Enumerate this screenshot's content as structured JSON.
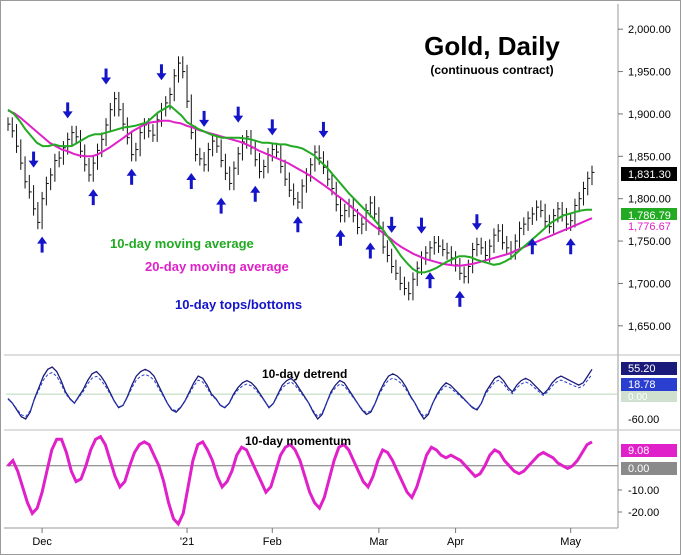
{
  "chart_data": {
    "type": "line",
    "title": "Gold, Daily",
    "subtitle": "(continuous contract)",
    "x_axis": {
      "tick_labels": [
        "Dec",
        "'21",
        "Feb",
        "Mar",
        "Apr",
        "May"
      ],
      "tick_index": [
        8,
        42,
        62,
        88,
        106,
        133
      ]
    },
    "price_panel": {
      "y_range": [
        1625,
        2025
      ],
      "y_ticks": [
        1650,
        1700,
        1750,
        1800,
        1850,
        1900,
        1950,
        2000
      ],
      "y_tick_labels": [
        "1,650.00",
        "1,700.00",
        "1,750.00",
        "1,800.00",
        "1,850.00",
        "1,900.00",
        "1,950.00",
        "2,000.00"
      ],
      "last_price_label": "1,831.30",
      "sma10_label": "1,786.79",
      "sma20_label": "1,776.67",
      "close": [
        1888,
        1880,
        1862,
        1842,
        1820,
        1808,
        1788,
        1772,
        1800,
        1818,
        1828,
        1845,
        1848,
        1860,
        1870,
        1878,
        1873,
        1856,
        1840,
        1828,
        1842,
        1857,
        1870,
        1887,
        1905,
        1918,
        1905,
        1888,
        1872,
        1852,
        1858,
        1878,
        1887,
        1880,
        1875,
        1893,
        1905,
        1913,
        1923,
        1945,
        1960,
        1950,
        1915,
        1878,
        1852,
        1847,
        1840,
        1858,
        1868,
        1862,
        1845,
        1830,
        1818,
        1836,
        1853,
        1867,
        1873,
        1860,
        1846,
        1832,
        1838,
        1852,
        1858,
        1855,
        1838,
        1823,
        1810,
        1800,
        1796,
        1815,
        1828,
        1840,
        1855,
        1848,
        1837,
        1823,
        1812,
        1793,
        1780,
        1786,
        1792,
        1780,
        1766,
        1770,
        1786,
        1795,
        1782,
        1765,
        1743,
        1733,
        1720,
        1712,
        1700,
        1694,
        1688,
        1705,
        1718,
        1730,
        1736,
        1742,
        1748,
        1744,
        1740,
        1736,
        1730,
        1722,
        1712,
        1708,
        1720,
        1740,
        1746,
        1742,
        1733,
        1744,
        1757,
        1762,
        1748,
        1742,
        1736,
        1750,
        1765,
        1770,
        1777,
        1782,
        1790,
        1786,
        1773,
        1767,
        1780,
        1788,
        1781,
        1770,
        1774,
        1792,
        1800,
        1812,
        1824,
        1831
      ],
      "sma10": [
        1905,
        1900,
        1892,
        1882,
        1874,
        1866,
        1862,
        1862,
        1864,
        1862,
        1862,
        1862,
        1866,
        1870,
        1874,
        1876,
        1876,
        1878,
        1880,
        1882,
        1884,
        1885,
        1886,
        1888,
        1890,
        1896,
        1902,
        1906,
        1910,
        1904,
        1898,
        1890,
        1886,
        1882,
        1879,
        1876,
        1874,
        1872,
        1872,
        1872,
        1872,
        1871,
        1870,
        1868,
        1866,
        1866,
        1865,
        1864,
        1864,
        1862,
        1861,
        1859,
        1855,
        1851,
        1844,
        1838,
        1830,
        1822,
        1814,
        1806,
        1799,
        1792,
        1785,
        1778,
        1770,
        1762,
        1752,
        1742,
        1732,
        1724,
        1717,
        1713,
        1713,
        1715,
        1718,
        1722,
        1726,
        1729,
        1732,
        1732,
        1731,
        1728,
        1726,
        1724,
        1722,
        1723,
        1726,
        1730,
        1736,
        1742,
        1748,
        1754,
        1760,
        1766,
        1772,
        1776,
        1780,
        1782,
        1784,
        1786,
        1787,
        1787
      ],
      "sma20": [
        1904,
        1901,
        1896,
        1890,
        1884,
        1878,
        1872,
        1866,
        1862,
        1858,
        1856,
        1853,
        1851,
        1850,
        1850,
        1852,
        1856,
        1860,
        1865,
        1870,
        1875,
        1880,
        1884,
        1888,
        1890,
        1891,
        1892,
        1892,
        1890,
        1889,
        1886,
        1884,
        1881,
        1879,
        1877,
        1875,
        1873,
        1871,
        1869,
        1867,
        1864,
        1861,
        1857,
        1854,
        1851,
        1848,
        1845,
        1842,
        1838,
        1834,
        1830,
        1826,
        1821,
        1816,
        1811,
        1805,
        1800,
        1794,
        1788,
        1782,
        1776,
        1770,
        1765,
        1759,
        1754,
        1748,
        1743,
        1739,
        1735,
        1732,
        1729,
        1727,
        1725,
        1723,
        1722,
        1721,
        1721,
        1722,
        1723,
        1725,
        1727,
        1729,
        1731,
        1733,
        1735,
        1738,
        1741,
        1744,
        1747,
        1750,
        1753,
        1756,
        1759,
        1762,
        1765,
        1768,
        1771,
        1774,
        1777
      ]
    },
    "legend": [
      {
        "label": "10-day moving average",
        "color": "#22aa22"
      },
      {
        "label": "20-day moving average",
        "color": "#e020c8"
      },
      {
        "label": "10-day tops/bottoms",
        "color": "#1414c8"
      }
    ],
    "turning_points": {
      "tops": [
        9,
        20,
        32,
        50,
        64,
        75,
        86,
        102,
        125,
        135,
        152
      ],
      "bottoms": [
        11,
        28,
        40,
        59,
        69,
        80,
        94,
        108,
        118,
        137,
        147,
        170,
        183
      ]
    },
    "detrend_panel": {
      "label": "10-day detrend",
      "value_label": "55.20",
      "secondary_label": "18.78",
      "zero_label": "0.00",
      "tick_label": "-60.00",
      "values": [
        -10,
        -20,
        -35,
        -50,
        -55,
        -40,
        -10,
        15,
        40,
        55,
        60,
        50,
        30,
        5,
        -10,
        -20,
        -5,
        10,
        30,
        45,
        50,
        40,
        25,
        5,
        -15,
        -30,
        -25,
        -5,
        20,
        40,
        50,
        55,
        50,
        40,
        20,
        0,
        -20,
        -35,
        -40,
        -30,
        -15,
        5,
        25,
        40,
        35,
        20,
        0,
        -10,
        -25,
        -30,
        -20,
        0,
        15,
        25,
        30,
        25,
        15,
        0,
        -15,
        -30,
        -20,
        0,
        20,
        30,
        35,
        25,
        10,
        -5,
        -20,
        -40,
        -55,
        -45,
        -20,
        5,
        20,
        30,
        25,
        10,
        -5,
        -20,
        -35,
        -45,
        -40,
        -20,
        5,
        25,
        40,
        45,
        40,
        30,
        15,
        -5,
        -20,
        -40,
        -55,
        -45,
        -20,
        0,
        15,
        25,
        20,
        10,
        0,
        -10,
        -20,
        -30,
        -35,
        -20,
        5,
        20,
        35,
        40,
        30,
        15,
        5,
        20,
        30,
        35,
        30,
        20,
        10,
        0,
        10,
        25,
        35,
        40,
        35,
        30,
        25,
        20,
        25,
        40,
        55
      ],
      "y_range": [
        -75,
        80
      ]
    },
    "momentum_panel": {
      "label": "10-day momentum",
      "value_label": "9.08",
      "zero_label": "0.00",
      "tick_labels": [
        "-10.00",
        "-20.00"
      ],
      "y_range": [
        -22,
        12
      ],
      "values": [
        0,
        2,
        -2,
        -8,
        -14,
        -18,
        -16,
        -10,
        -2,
        6,
        10,
        10,
        5,
        -2,
        -6,
        -5,
        0,
        6,
        10,
        11,
        8,
        2,
        -4,
        -8,
        -6,
        0,
        5,
        8,
        9,
        8,
        4,
        0,
        -6,
        -14,
        -20,
        -22,
        -18,
        -8,
        2,
        8,
        9,
        6,
        2,
        -4,
        -8,
        -6,
        -2,
        4,
        7,
        6,
        2,
        -2,
        -6,
        -10,
        -8,
        -2,
        4,
        7,
        8,
        6,
        2,
        -4,
        -10,
        -14,
        -16,
        -12,
        -5,
        2,
        7,
        8,
        6,
        2,
        -2,
        -6,
        -8,
        -4,
        2,
        6,
        5,
        2,
        -2,
        -6,
        -10,
        -12,
        -8,
        -2,
        4,
        7,
        6,
        4,
        3,
        4,
        3,
        2,
        0,
        -2,
        -4,
        -3,
        0,
        4,
        6,
        5,
        2,
        0,
        -2,
        -3,
        -2,
        0,
        2,
        4,
        5,
        4,
        3,
        1,
        0,
        -1,
        0,
        2,
        5,
        8,
        9
      ]
    }
  }
}
